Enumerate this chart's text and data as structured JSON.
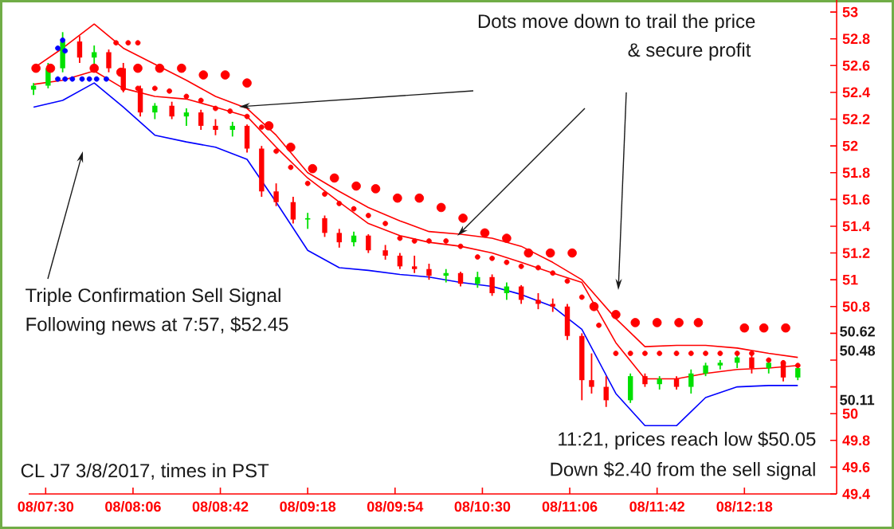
{
  "chart_data": {
    "type": "candlestick",
    "xlim": [
      "2017-03-08T07:23",
      "2017-03-08T12:56"
    ],
    "ylim": [
      49.4,
      53.09
    ],
    "xticks": [
      {
        "value": "2017-03-08T07:30",
        "label": "08/07:30"
      },
      {
        "value": "2017-03-08T08:06",
        "label": "08/08:06"
      },
      {
        "value": "2017-03-08T08:42",
        "label": "08/08:42"
      },
      {
        "value": "2017-03-08T09:18",
        "label": "08/09:18"
      },
      {
        "value": "2017-03-08T09:54",
        "label": "08/09:54"
      },
      {
        "value": "2017-03-08T10:30",
        "label": "08/10:30"
      },
      {
        "value": "2017-03-08T11:06",
        "label": "08/11:06"
      },
      {
        "value": "2017-03-08T11:42",
        "label": "08/11:42"
      },
      {
        "value": "2017-03-08T12:18",
        "label": "08/12:18"
      }
    ],
    "yticks": [
      53,
      52.8,
      52.6,
      52.4,
      52.2,
      52,
      51.8,
      51.6,
      51.4,
      51.2,
      51,
      50.8,
      {
        "value": 50.6,
        "label": null
      },
      {
        "value": 50.4,
        "label": null
      },
      {
        "value": 50.2,
        "label": null
      },
      50,
      49.8,
      49.6,
      49.4
    ],
    "series": [
      {
        "type": "line",
        "color": "#ff0000",
        "x": [
          "2017-03-08T07:25",
          "2017-03-08T07:37",
          "2017-03-08T07:50",
          "2017-03-08T08:02",
          "2017-03-08T08:15",
          "2017-03-08T08:28",
          "2017-03-08T08:40",
          "2017-03-08T08:53",
          "2017-03-08T09:05",
          "2017-03-08T09:18",
          "2017-03-08T09:31",
          "2017-03-08T09:43",
          "2017-03-08T09:56",
          "2017-03-08T10:08",
          "2017-03-08T10:21",
          "2017-03-08T10:34",
          "2017-03-08T10:46",
          "2017-03-08T10:59",
          "2017-03-08T11:11",
          "2017-03-08T11:25",
          "2017-03-08T11:37",
          "2017-03-08T11:50",
          "2017-03-08T12:02",
          "2017-03-08T12:15",
          "2017-03-08T12:28",
          "2017-03-08T12:40"
        ],
        "values": [
          52.58,
          52.73,
          52.91,
          52.73,
          52.61,
          52.49,
          52.37,
          52.28,
          52.08,
          51.8,
          51.66,
          51.54,
          51.44,
          51.36,
          51.34,
          51.31,
          51.25,
          51.13,
          51.0,
          50.71,
          50.5,
          50.51,
          50.51,
          50.49,
          50.45,
          50.42
        ]
      },
      {
        "type": "line",
        "color": "#ff0000",
        "x": [
          "2017-03-08T07:25",
          "2017-03-08T07:37",
          "2017-03-08T07:50",
          "2017-03-08T08:02",
          "2017-03-08T08:15",
          "2017-03-08T08:28",
          "2017-03-08T08:40",
          "2017-03-08T08:53",
          "2017-03-08T09:05",
          "2017-03-08T09:18",
          "2017-03-08T09:31",
          "2017-03-08T09:43",
          "2017-03-08T09:56",
          "2017-03-08T10:08",
          "2017-03-08T10:21",
          "2017-03-08T10:34",
          "2017-03-08T10:46",
          "2017-03-08T10:59",
          "2017-03-08T11:11",
          "2017-03-08T11:25",
          "2017-03-08T11:37",
          "2017-03-08T11:50",
          "2017-03-08T12:02",
          "2017-03-08T12:15",
          "2017-03-08T12:28",
          "2017-03-08T12:40"
        ],
        "values": [
          52.46,
          52.49,
          52.56,
          52.43,
          52.37,
          52.35,
          52.29,
          52.22,
          51.99,
          51.76,
          51.58,
          51.42,
          51.33,
          51.28,
          51.25,
          51.2,
          51.13,
          51.05,
          50.98,
          50.53,
          50.26,
          50.26,
          50.3,
          50.33,
          50.34,
          50.36
        ]
      },
      {
        "type": "line",
        "color": "#0000ff",
        "x": [
          "2017-03-08T07:25",
          "2017-03-08T07:37",
          "2017-03-08T07:50",
          "2017-03-08T08:02",
          "2017-03-08T08:15",
          "2017-03-08T08:28",
          "2017-03-08T08:40",
          "2017-03-08T08:53",
          "2017-03-08T09:05",
          "2017-03-08T09:18",
          "2017-03-08T09:31",
          "2017-03-08T09:43",
          "2017-03-08T09:56",
          "2017-03-08T10:08",
          "2017-03-08T10:21",
          "2017-03-08T10:34",
          "2017-03-08T10:46",
          "2017-03-08T10:59",
          "2017-03-08T11:11",
          "2017-03-08T11:25",
          "2017-03-08T11:37",
          "2017-03-08T11:50",
          "2017-03-08T12:02",
          "2017-03-08T12:15",
          "2017-03-08T12:28",
          "2017-03-08T12:40"
        ],
        "values": [
          52.29,
          52.34,
          52.47,
          52.29,
          52.08,
          52.03,
          51.99,
          51.9,
          51.58,
          51.22,
          51.09,
          51.07,
          51.04,
          51.02,
          50.98,
          50.95,
          50.89,
          50.8,
          50.63,
          50.15,
          49.91,
          49.91,
          50.12,
          50.2,
          50.21,
          50.21
        ]
      },
      {
        "type": "scatter",
        "marker": "circle",
        "color": "#ff0000",
        "x": [
          "2017-03-08T07:26",
          "2017-03-08T07:32",
          "2017-03-08T07:50",
          "2017-03-08T08:01",
          "2017-03-08T08:08",
          "2017-03-08T08:17",
          "2017-03-08T08:26",
          "2017-03-08T08:35",
          "2017-03-08T08:44",
          "2017-03-08T08:53",
          "2017-03-08T09:02",
          "2017-03-08T09:11",
          "2017-03-08T09:20",
          "2017-03-08T09:29",
          "2017-03-08T09:38",
          "2017-03-08T09:46",
          "2017-03-08T09:55",
          "2017-03-08T10:04",
          "2017-03-08T10:13",
          "2017-03-08T10:22",
          "2017-03-08T10:31",
          "2017-03-08T10:40",
          "2017-03-08T10:49",
          "2017-03-08T10:58",
          "2017-03-08T11:07",
          "2017-03-08T11:16",
          "2017-03-08T11:25",
          "2017-03-08T11:33",
          "2017-03-08T11:42",
          "2017-03-08T11:51",
          "2017-03-08T11:59",
          "2017-03-08T12:18",
          "2017-03-08T12:26",
          "2017-03-08T12:35"
        ],
        "values": [
          52.58,
          52.58,
          52.58,
          52.55,
          52.58,
          52.58,
          52.58,
          52.53,
          52.53,
          52.47,
          52.15,
          51.99,
          51.83,
          51.76,
          51.7,
          51.68,
          51.61,
          51.61,
          51.54,
          51.46,
          51.35,
          51.31,
          51.2,
          51.2,
          51.2,
          50.8,
          50.74,
          50.68,
          50.68,
          50.68,
          50.68,
          50.64,
          50.64,
          50.64
        ]
      },
      {
        "type": "scatter",
        "marker": "circle",
        "color": "#ff0000",
        "x": [
          "2017-03-08T07:59",
          "2017-03-08T08:04",
          "2017-03-08T08:08",
          "2017-03-08T08:02",
          "2017-03-08T08:08",
          "2017-03-08T08:15",
          "2017-03-08T08:21",
          "2017-03-08T08:28",
          "2017-03-08T08:34",
          "2017-03-08T08:40",
          "2017-03-08T08:46",
          "2017-03-08T08:53",
          "2017-03-08T08:59",
          "2017-03-08T09:05",
          "2017-03-08T09:11",
          "2017-03-08T09:18",
          "2017-03-08T09:25",
          "2017-03-08T09:31",
          "2017-03-08T09:37",
          "2017-03-08T09:43",
          "2017-03-08T09:50",
          "2017-03-08T09:56",
          "2017-03-08T10:02",
          "2017-03-08T10:08",
          "2017-03-08T10:15",
          "2017-03-08T10:21",
          "2017-03-08T10:28",
          "2017-03-08T10:34",
          "2017-03-08T10:40",
          "2017-03-08T10:46",
          "2017-03-08T10:53",
          "2017-03-08T10:59",
          "2017-03-08T11:05",
          "2017-03-08T11:11",
          "2017-03-08T11:18",
          "2017-03-08T11:25",
          "2017-03-08T11:31",
          "2017-03-08T11:37",
          "2017-03-08T11:43",
          "2017-03-08T11:50",
          "2017-03-08T11:56",
          "2017-03-08T12:02",
          "2017-03-08T12:08",
          "2017-03-08T12:15",
          "2017-03-08T12:21",
          "2017-03-08T12:28",
          "2017-03-08T12:34",
          "2017-03-08T12:40"
        ],
        "values": [
          52.77,
          52.77,
          52.77,
          52.43,
          52.43,
          52.43,
          52.41,
          52.37,
          52.34,
          52.28,
          52.26,
          52.22,
          52.14,
          51.96,
          51.84,
          51.72,
          51.64,
          51.57,
          51.53,
          51.48,
          51.42,
          51.31,
          51.29,
          51.29,
          51.29,
          51.25,
          51.17,
          51.16,
          51.13,
          51.1,
          51.09,
          51.05,
          50.99,
          50.87,
          50.66,
          50.45,
          50.45,
          50.45,
          50.45,
          50.45,
          50.45,
          50.45,
          50.45,
          50.45,
          50.45,
          50.4,
          50.38,
          50.36
        ]
      },
      {
        "type": "scatter",
        "marker": "circle",
        "color": "#0000ff",
        "x": [
          "2017-03-08T07:35",
          "2017-03-08T07:38",
          "2017-03-08T07:41",
          "2017-03-08T07:45",
          "2017-03-08T07:48",
          "2017-03-08T07:51",
          "2017-03-08T07:55",
          "2017-03-08T07:37",
          "2017-03-08T07:35",
          "2017-03-08T07:38"
        ],
        "values": [
          52.5,
          52.5,
          52.5,
          52.5,
          52.5,
          52.5,
          52.5,
          52.79,
          52.73,
          52.71
        ]
      },
      {
        "x": [
          "2017-03-08T07:25",
          "2017-03-08T07:31",
          "2017-03-08T07:37",
          "2017-03-08T07:44",
          "2017-03-08T07:50",
          "2017-03-08T07:56",
          "2017-03-08T08:02",
          "2017-03-08T08:09",
          "2017-03-08T08:15",
          "2017-03-08T08:22",
          "2017-03-08T08:28",
          "2017-03-08T08:34",
          "2017-03-08T08:40",
          "2017-03-08T08:47",
          "2017-03-08T08:53",
          "2017-03-08T08:59",
          "2017-03-08T09:05",
          "2017-03-08T09:12",
          "2017-03-08T09:18",
          "2017-03-08T09:25",
          "2017-03-08T09:31",
          "2017-03-08T09:37",
          "2017-03-08T09:43",
          "2017-03-08T09:50",
          "2017-03-08T09:56",
          "2017-03-08T10:02",
          "2017-03-08T10:08",
          "2017-03-08T10:15",
          "2017-03-08T10:21",
          "2017-03-08T10:28",
          "2017-03-08T10:34",
          "2017-03-08T10:40",
          "2017-03-08T10:46",
          "2017-03-08T10:53",
          "2017-03-08T10:59",
          "2017-03-08T11:05",
          "2017-03-08T11:11",
          "2017-03-08T11:15",
          "2017-03-08T11:21",
          "2017-03-08T11:31",
          "2017-03-08T11:37",
          "2017-03-08T11:43",
          "2017-03-08T11:50",
          "2017-03-08T11:56",
          "2017-03-08T12:02",
          "2017-03-08T12:08",
          "2017-03-08T12:15",
          "2017-03-08T12:21",
          "2017-03-08T12:28",
          "2017-03-08T12:34",
          "2017-03-08T12:40"
        ],
        "ohlc": [
          [
            52.42,
            52.47,
            52.38,
            52.45
          ],
          [
            52.45,
            52.62,
            52.43,
            52.58
          ],
          [
            52.58,
            52.85,
            52.55,
            52.78
          ],
          [
            52.78,
            52.82,
            52.62,
            52.66
          ],
          [
            52.66,
            52.75,
            52.6,
            52.7
          ],
          [
            52.7,
            52.72,
            52.55,
            52.58
          ],
          [
            52.58,
            52.62,
            52.4,
            52.43
          ],
          [
            52.43,
            52.45,
            52.22,
            52.25
          ],
          [
            52.25,
            52.32,
            52.2,
            52.3
          ],
          [
            52.3,
            52.33,
            52.2,
            52.22
          ],
          [
            52.22,
            52.28,
            52.15,
            52.25
          ],
          [
            52.25,
            52.27,
            52.12,
            52.15
          ],
          [
            52.15,
            52.2,
            52.08,
            52.12
          ],
          [
            52.12,
            52.18,
            52.07,
            52.15
          ],
          [
            52.15,
            52.16,
            51.95,
            51.98
          ],
          [
            51.98,
            52.0,
            51.62,
            51.66
          ],
          [
            51.66,
            51.72,
            51.55,
            51.58
          ],
          [
            51.58,
            51.62,
            51.42,
            51.45
          ],
          [
            51.45,
            51.5,
            51.38,
            51.46
          ],
          [
            51.46,
            51.48,
            51.32,
            51.35
          ],
          [
            51.35,
            51.38,
            51.24,
            51.28
          ],
          [
            51.28,
            51.36,
            51.25,
            51.33
          ],
          [
            51.33,
            51.34,
            51.2,
            51.22
          ],
          [
            51.22,
            51.26,
            51.15,
            51.18
          ],
          [
            51.18,
            51.2,
            51.08,
            51.1
          ],
          [
            51.1,
            51.18,
            51.05,
            51.08
          ],
          [
            51.08,
            51.12,
            51.0,
            51.03
          ],
          [
            51.03,
            51.08,
            50.98,
            51.05
          ],
          [
            51.05,
            51.06,
            50.95,
            50.97
          ],
          [
            50.97,
            51.06,
            50.94,
            51.02
          ],
          [
            51.02,
            51.04,
            50.88,
            50.9
          ],
          [
            50.9,
            50.98,
            50.85,
            50.95
          ],
          [
            50.95,
            50.96,
            50.82,
            50.85
          ],
          [
            50.85,
            50.9,
            50.78,
            50.82
          ],
          [
            50.82,
            50.86,
            50.76,
            50.8
          ],
          [
            50.8,
            50.82,
            50.55,
            50.58
          ],
          [
            50.58,
            50.6,
            50.1,
            50.25
          ],
          [
            50.25,
            50.45,
            50.15,
            50.2
          ],
          [
            50.2,
            50.28,
            50.05,
            50.1
          ],
          [
            50.1,
            50.3,
            50.08,
            50.28
          ],
          [
            50.28,
            50.3,
            50.2,
            50.22
          ],
          [
            50.22,
            50.28,
            50.18,
            50.26
          ],
          [
            50.26,
            50.28,
            50.18,
            50.2
          ],
          [
            50.2,
            50.33,
            50.15,
            50.3
          ],
          [
            50.3,
            50.38,
            50.28,
            50.36
          ],
          [
            50.36,
            50.4,
            50.33,
            50.38
          ],
          [
            50.38,
            50.44,
            50.34,
            50.42
          ],
          [
            50.42,
            50.44,
            50.3,
            50.34
          ],
          [
            50.34,
            50.4,
            50.3,
            50.38
          ],
          [
            50.38,
            50.4,
            50.24,
            50.27
          ],
          [
            50.27,
            50.36,
            50.25,
            50.34
          ]
        ],
        "colors": [
          "#00e000",
          "#00e000",
          "#00e000",
          "#ff0000",
          "#00e000",
          "#ff0000",
          "#ff0000",
          "#ff0000",
          "#00e000",
          "#ff0000",
          "#00e000",
          "#ff0000",
          "#ff0000",
          "#00e000",
          "#ff0000",
          "#ff0000",
          "#ff0000",
          "#ff0000",
          "#00e000",
          "#ff0000",
          "#ff0000",
          "#00e000",
          "#ff0000",
          "#ff0000",
          "#ff0000",
          "#ff0000",
          "#ff0000",
          "#00e000",
          "#ff0000",
          "#00e000",
          "#ff0000",
          "#00e000",
          "#ff0000",
          "#ff0000",
          "#ff0000",
          "#ff0000",
          "#ff0000",
          "#ff0000",
          "#ff0000",
          "#00e000",
          "#ff0000",
          "#00e000",
          "#ff0000",
          "#00e000",
          "#00e000",
          "#00e000",
          "#00e000",
          "#ff0000",
          "#00e000",
          "#ff0000",
          "#00e000"
        ]
      }
    ],
    "annotations": [
      "Dots move down to trail the price",
      "& secure profit",
      "Triple Confirmation Sell Signal",
      "Following news at 7:57, $52.45",
      "11:21, prices reach low $50.05",
      "Down $2.40 from the sell signal",
      "CL J7 3/8/2017, times in PST",
      "50.62",
      "50.48",
      "50.11"
    ]
  }
}
